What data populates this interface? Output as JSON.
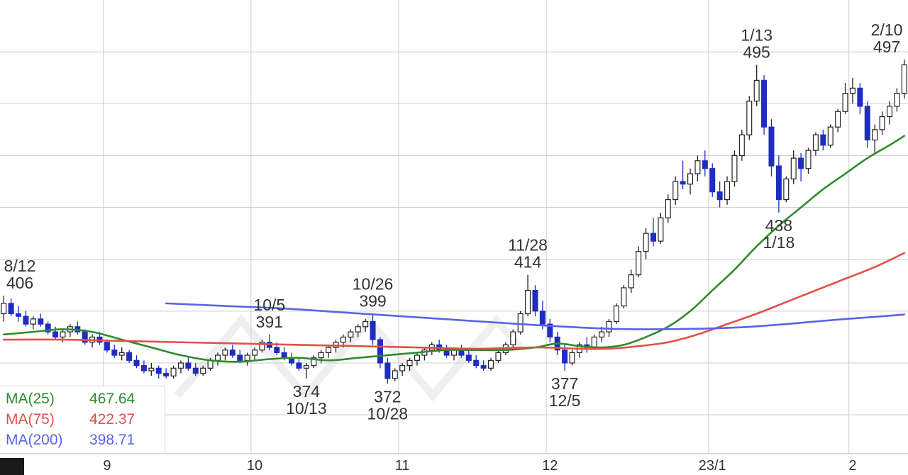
{
  "legend": {
    "items": [
      {
        "label": "MA(25)",
        "value": "467.64",
        "color": "#2e8b2e"
      },
      {
        "label": "MA(75)",
        "value": "422.37",
        "color": "#e0504a"
      },
      {
        "label": "MA(200)",
        "value": "398.71",
        "color": "#5865e6"
      }
    ]
  },
  "chart_data": {
    "type": "candlestick",
    "title": "",
    "xlabel": "",
    "ylabel": "",
    "ylim": [
      345,
      520
    ],
    "grid_prices": [
      360,
      380,
      400,
      420,
      440,
      460,
      480,
      500
    ],
    "colors": {
      "up_fill": "#ffffff",
      "up_stroke": "#222222",
      "down": "#1e2dc0",
      "grid": "#cccccc",
      "annotation": "#333333",
      "axis_text": "#333333",
      "axis_line": "#b8b8b8",
      "watermark": "#efefef",
      "corner_block": "#1a1a1a",
      "background": "#ffffff"
    },
    "x_axis": {
      "labels": [
        {
          "text": "9",
          "index": 14
        },
        {
          "text": "10",
          "index": 34
        },
        {
          "text": "11",
          "index": 54
        },
        {
          "text": "12",
          "index": 74
        },
        {
          "text": "23/1",
          "index": 96
        },
        {
          "text": "2",
          "index": 115
        }
      ]
    },
    "candles": [
      [
        "8/12",
        399,
        406,
        396,
        403
      ],
      [
        "8/15",
        403,
        405,
        398,
        399
      ],
      [
        "8/16",
        399,
        402,
        396,
        398
      ],
      [
        "8/17",
        398,
        400,
        394,
        395
      ],
      [
        "8/18",
        395,
        398,
        393,
        397
      ],
      [
        "8/19",
        397,
        399,
        394,
        395
      ],
      [
        "8/22",
        395,
        396,
        391,
        392
      ],
      [
        "8/23",
        392,
        394,
        389,
        390
      ],
      [
        "8/24",
        390,
        393,
        388,
        392
      ],
      [
        "8/25",
        392,
        395,
        390,
        394
      ],
      [
        "8/26",
        394,
        396,
        391,
        392
      ],
      [
        "8/29",
        392,
        393,
        387,
        388
      ],
      [
        "8/30",
        388,
        391,
        386,
        390
      ],
      [
        "8/31",
        390,
        392,
        387,
        388
      ],
      [
        "9/1",
        388,
        389,
        384,
        385
      ],
      [
        "9/2",
        385,
        387,
        382,
        383
      ],
      [
        "9/5",
        383,
        386,
        381,
        384
      ],
      [
        "9/6",
        384,
        385,
        380,
        381
      ],
      [
        "9/7",
        381,
        383,
        378,
        379
      ],
      [
        "9/8",
        379,
        381,
        376,
        377
      ],
      [
        "9/9",
        377,
        380,
        375,
        378
      ],
      [
        "9/12",
        378,
        379,
        374,
        376
      ],
      [
        "9/13",
        376,
        378,
        374,
        375
      ],
      [
        "9/14",
        375,
        379,
        374,
        378
      ],
      [
        "9/15",
        378,
        381,
        376,
        380
      ],
      [
        "9/16",
        380,
        382,
        377,
        378
      ],
      [
        "9/20",
        378,
        380,
        375,
        376
      ],
      [
        "9/21",
        376,
        379,
        375,
        378
      ],
      [
        "9/22",
        378,
        382,
        377,
        381
      ],
      [
        "9/26",
        381,
        384,
        379,
        383
      ],
      [
        "9/27",
        383,
        386,
        381,
        385
      ],
      [
        "9/28",
        385,
        387,
        382,
        383
      ],
      [
        "9/29",
        383,
        385,
        380,
        381
      ],
      [
        "9/30",
        381,
        384,
        379,
        383
      ],
      [
        "10/3",
        383,
        386,
        381,
        385
      ],
      [
        "10/4",
        385,
        389,
        384,
        388
      ],
      [
        "10/5",
        388,
        391,
        385,
        386
      ],
      [
        "10/6",
        386,
        388,
        383,
        384
      ],
      [
        "10/7",
        384,
        386,
        381,
        382
      ],
      [
        "10/11",
        382,
        384,
        379,
        380
      ],
      [
        "10/12",
        380,
        382,
        377,
        378
      ],
      [
        "10/13",
        378,
        380,
        374,
        379
      ],
      [
        "10/14",
        379,
        383,
        378,
        382
      ],
      [
        "10/17",
        382,
        385,
        380,
        384
      ],
      [
        "10/18",
        384,
        387,
        382,
        386
      ],
      [
        "10/19",
        386,
        389,
        384,
        388
      ],
      [
        "10/20",
        388,
        391,
        386,
        390
      ],
      [
        "10/21",
        390,
        393,
        388,
        392
      ],
      [
        "10/24",
        392,
        395,
        390,
        394
      ],
      [
        "10/25",
        394,
        397,
        392,
        396
      ],
      [
        "10/26",
        396,
        399,
        387,
        389
      ],
      [
        "10/27",
        389,
        390,
        378,
        380
      ],
      [
        "10/28",
        380,
        382,
        372,
        374
      ],
      [
        "10/31",
        374,
        378,
        373,
        377
      ],
      [
        "11/1",
        377,
        380,
        375,
        379
      ],
      [
        "11/2",
        379,
        382,
        377,
        381
      ],
      [
        "11/4",
        381,
        384,
        379,
        383
      ],
      [
        "11/7",
        383,
        386,
        381,
        385
      ],
      [
        "11/8",
        385,
        388,
        383,
        387
      ],
      [
        "11/9",
        387,
        389,
        384,
        385
      ],
      [
        "11/10",
        385,
        387,
        382,
        383
      ],
      [
        "11/11",
        383,
        386,
        381,
        385
      ],
      [
        "11/14",
        385,
        387,
        382,
        383
      ],
      [
        "11/15",
        383,
        385,
        380,
        381
      ],
      [
        "11/16",
        381,
        383,
        378,
        379
      ],
      [
        "11/17",
        379,
        381,
        377,
        378
      ],
      [
        "11/18",
        378,
        382,
        377,
        381
      ],
      [
        "11/21",
        381,
        385,
        380,
        384
      ],
      [
        "11/22",
        384,
        388,
        383,
        387
      ],
      [
        "11/24",
        387,
        393,
        386,
        392
      ],
      [
        "11/25",
        392,
        400,
        391,
        399
      ],
      [
        "11/28",
        399,
        414,
        398,
        408
      ],
      [
        "11/29",
        408,
        410,
        398,
        400
      ],
      [
        "11/30",
        400,
        404,
        393,
        395
      ],
      [
        "12/1",
        395,
        397,
        388,
        390
      ],
      [
        "12/2",
        390,
        392,
        383,
        385
      ],
      [
        "12/5",
        385,
        387,
        377,
        380
      ],
      [
        "12/6",
        380,
        385,
        379,
        384
      ],
      [
        "12/7",
        384,
        388,
        382,
        387
      ],
      [
        "12/8",
        387,
        390,
        384,
        386
      ],
      [
        "12/9",
        386,
        391,
        385,
        390
      ],
      [
        "12/12",
        390,
        394,
        388,
        392
      ],
      [
        "12/13",
        392,
        397,
        390,
        396
      ],
      [
        "12/14",
        396,
        403,
        395,
        402
      ],
      [
        "12/15",
        402,
        410,
        401,
        409
      ],
      [
        "12/16",
        409,
        416,
        407,
        414
      ],
      [
        "12/19",
        414,
        425,
        413,
        423
      ],
      [
        "12/20",
        423,
        432,
        420,
        430
      ],
      [
        "12/21",
        430,
        436,
        425,
        427
      ],
      [
        "12/22",
        427,
        438,
        426,
        436
      ],
      [
        "12/23",
        436,
        445,
        434,
        443
      ],
      [
        "12/26",
        443,
        452,
        441,
        450
      ],
      [
        "12/27",
        450,
        458,
        447,
        449
      ],
      [
        "12/28",
        449,
        455,
        445,
        453
      ],
      [
        "12/29",
        453,
        460,
        450,
        458
      ],
      [
        "12/30",
        458,
        462,
        452,
        455
      ],
      [
        "1/4",
        455,
        457,
        444,
        446
      ],
      [
        "1/5",
        446,
        450,
        440,
        443
      ],
      [
        "1/6",
        443,
        452,
        441,
        450
      ],
      [
        "1/10",
        450,
        462,
        448,
        460
      ],
      [
        "1/11",
        460,
        470,
        458,
        468
      ],
      [
        "1/12",
        468,
        483,
        466,
        481
      ],
      [
        "1/13",
        481,
        495,
        479,
        489
      ],
      [
        "1/16",
        489,
        491,
        468,
        471
      ],
      [
        "1/17",
        471,
        474,
        452,
        456
      ],
      [
        "1/18",
        456,
        460,
        438,
        443
      ],
      [
        "1/19",
        443,
        452,
        442,
        451
      ],
      [
        "1/20",
        451,
        462,
        449,
        459
      ],
      [
        "1/23",
        459,
        461,
        450,
        455
      ],
      [
        "1/24",
        455,
        463,
        453,
        462
      ],
      [
        "1/25",
        462,
        469,
        460,
        468
      ],
      [
        "1/26",
        468,
        470,
        462,
        464
      ],
      [
        "1/27",
        464,
        472,
        463,
        471
      ],
      [
        "1/30",
        471,
        478,
        469,
        477
      ],
      [
        "1/31",
        477,
        488,
        476,
        484
      ],
      [
        "2/1",
        484,
        490,
        480,
        486
      ],
      [
        "2/2",
        486,
        488,
        476,
        479
      ],
      [
        "2/3",
        479,
        481,
        463,
        466
      ],
      [
        "2/6",
        466,
        472,
        461,
        470
      ],
      [
        "2/7",
        470,
        477,
        468,
        475
      ],
      [
        "2/8",
        475,
        481,
        472,
        479
      ],
      [
        "2/9",
        479,
        486,
        477,
        484
      ],
      [
        "2/10",
        484,
        497,
        482,
        495
      ]
    ],
    "moving_averages": [
      {
        "name": "MA(25)",
        "color": "#2e8b2e",
        "points": [
          [
            0,
            391
          ],
          [
            4,
            392
          ],
          [
            8,
            393
          ],
          [
            12,
            392
          ],
          [
            16,
            389
          ],
          [
            20,
            386
          ],
          [
            24,
            383
          ],
          [
            28,
            381
          ],
          [
            32,
            380.5
          ],
          [
            36,
            381.5
          ],
          [
            40,
            382
          ],
          [
            44,
            381
          ],
          [
            48,
            382
          ],
          [
            52,
            383
          ],
          [
            56,
            384
          ],
          [
            60,
            385
          ],
          [
            64,
            385
          ],
          [
            68,
            385
          ],
          [
            72,
            386
          ],
          [
            75,
            387.5
          ],
          [
            78,
            386.5
          ],
          [
            81,
            386
          ],
          [
            84,
            387
          ],
          [
            87,
            390
          ],
          [
            90,
            394
          ],
          [
            93,
            400
          ],
          [
            96,
            408
          ],
          [
            99,
            416
          ],
          [
            102,
            425
          ],
          [
            105,
            433
          ],
          [
            108,
            440
          ],
          [
            111,
            447
          ],
          [
            114,
            453
          ],
          [
            117,
            459
          ],
          [
            120,
            464
          ],
          [
            122,
            467.6
          ]
        ]
      },
      {
        "name": "MA(75)",
        "color": "#e0504a",
        "points": [
          [
            0,
            389
          ],
          [
            8,
            389
          ],
          [
            16,
            388.5
          ],
          [
            24,
            388
          ],
          [
            32,
            387.5
          ],
          [
            40,
            387
          ],
          [
            48,
            386.5
          ],
          [
            56,
            386
          ],
          [
            64,
            385.5
          ],
          [
            72,
            386
          ],
          [
            78,
            385.5
          ],
          [
            82,
            385.5
          ],
          [
            86,
            386.5
          ],
          [
            90,
            388
          ],
          [
            94,
            391
          ],
          [
            98,
            395
          ],
          [
            102,
            399
          ],
          [
            106,
            403.5
          ],
          [
            110,
            408
          ],
          [
            114,
            412.5
          ],
          [
            118,
            417
          ],
          [
            122,
            422.4
          ]
        ]
      },
      {
        "name": "MA(200)",
        "color": "#5865e6",
        "points": [
          [
            22,
            403
          ],
          [
            30,
            402
          ],
          [
            38,
            401
          ],
          [
            46,
            399.5
          ],
          [
            54,
            398
          ],
          [
            62,
            396.5
          ],
          [
            70,
            395
          ],
          [
            76,
            394
          ],
          [
            82,
            393.2
          ],
          [
            88,
            393
          ],
          [
            94,
            393.2
          ],
          [
            100,
            393.8
          ],
          [
            106,
            395
          ],
          [
            112,
            396.5
          ],
          [
            118,
            397.8
          ],
          [
            122,
            398.7
          ]
        ]
      }
    ],
    "annotations": [
      {
        "index": 0,
        "price": 406,
        "lines": [
          "8/12",
          "406"
        ],
        "position": "above"
      },
      {
        "index": 36,
        "price": 391,
        "lines": [
          "10/5",
          "391"
        ],
        "position": "above"
      },
      {
        "index": 50,
        "price": 399,
        "lines": [
          "10/26",
          "399"
        ],
        "position": "above"
      },
      {
        "index": 71,
        "price": 414,
        "lines": [
          "11/28",
          "414"
        ],
        "position": "above"
      },
      {
        "index": 102,
        "price": 495,
        "lines": [
          "1/13",
          "495"
        ],
        "position": "above"
      },
      {
        "index": 122,
        "price": 497,
        "lines": [
          "2/10",
          "497"
        ],
        "position": "above"
      },
      {
        "index": 41,
        "price": 374,
        "lines": [
          "374",
          "10/13"
        ],
        "position": "below"
      },
      {
        "index": 52,
        "price": 372,
        "lines": [
          "372",
          "10/28"
        ],
        "position": "below"
      },
      {
        "index": 76,
        "price": 377,
        "lines": [
          "377",
          "12/5"
        ],
        "position": "below"
      },
      {
        "index": 105,
        "price": 438,
        "lines": [
          "438",
          "1/18"
        ],
        "position": "below"
      }
    ]
  }
}
